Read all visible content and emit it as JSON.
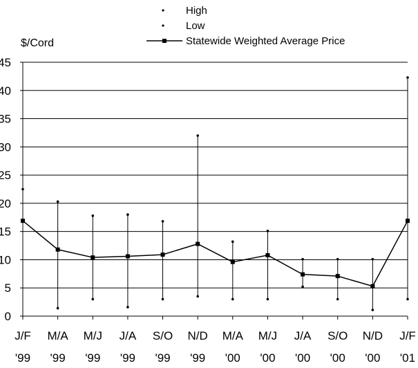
{
  "chart_data": {
    "type": "line",
    "unit_label": "$/Cord",
    "ylim": [
      0,
      45
    ],
    "y_ticks": [
      0,
      5,
      10,
      15,
      20,
      25,
      30,
      35,
      40,
      45
    ],
    "grid": "horizontal",
    "legend_position": "top",
    "categories": [
      {
        "line1": "J/F",
        "line2": "'99"
      },
      {
        "line1": "M/A",
        "line2": "'99"
      },
      {
        "line1": "M/J",
        "line2": "'99"
      },
      {
        "line1": "J/A",
        "line2": "'99"
      },
      {
        "line1": "S/O",
        "line2": "'99"
      },
      {
        "line1": "N/D",
        "line2": "'99"
      },
      {
        "line1": "M/A",
        "line2": "'00"
      },
      {
        "line1": "M/J",
        "line2": "'00"
      },
      {
        "line1": "J/A",
        "line2": "'00"
      },
      {
        "line1": "S/O",
        "line2": "'00"
      },
      {
        "line1": "N/D",
        "line2": "'00"
      },
      {
        "line1": "J/F",
        "line2": "'01"
      }
    ],
    "series": [
      {
        "name": "High",
        "marker": "dot",
        "values": [
          22.5,
          20.3,
          17.8,
          18.0,
          16.8,
          32.0,
          13.2,
          15.1,
          10.1,
          10.1,
          10.1,
          42.3
        ]
      },
      {
        "name": "Low",
        "marker": "dot",
        "values": [
          null,
          1.4,
          3.0,
          1.6,
          3.0,
          3.5,
          3.0,
          3.0,
          5.2,
          3.0,
          1.1,
          3.0
        ]
      },
      {
        "name": "Statewide Weighted Average Price",
        "marker": "square-line",
        "values": [
          16.9,
          11.8,
          10.4,
          10.6,
          10.9,
          12.8,
          9.6,
          10.8,
          7.4,
          7.1,
          5.3,
          16.9
        ]
      }
    ],
    "colors": {
      "line": "#000000",
      "grid": "#000000",
      "background": "#ffffff"
    }
  }
}
